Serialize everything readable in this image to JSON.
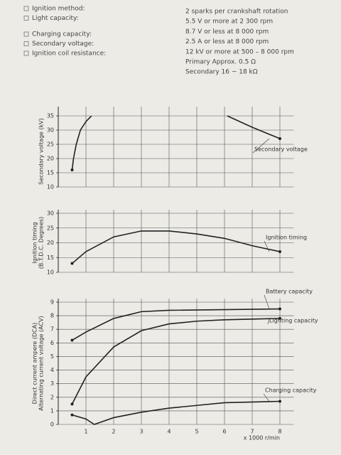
{
  "specs": [
    {
      "label": "Ignition method:",
      "values": [
        "2 sparks per crankshaft rotation"
      ]
    },
    {
      "label": "Light capacity:",
      "values": [
        "5.5 V or more at 2 300 rpm",
        "8.7 V or less at 8 000 rpm"
      ]
    },
    {
      "label": "Charging capacity:",
      "values": [
        "2.5 A or less at 8 000 rpm"
      ]
    },
    {
      "label": "Secondary voltage:",
      "values": [
        "12 kV or more at 500 – 8 000 rpm"
      ]
    },
    {
      "label": "Ignition coil resistance:",
      "values": [
        "Primary Approx. 0.5 Ω",
        "Secondary 16 ~ 18 kΩ"
      ]
    }
  ],
  "chart_data": [
    {
      "type": "line",
      "ylabel": [
        "Secondary voltage (kV)"
      ],
      "xlim": [
        0,
        8.5
      ],
      "xticks": [
        1,
        2,
        3,
        4,
        5,
        6,
        7,
        8
      ],
      "ylim": [
        10,
        35
      ],
      "yticks": [
        10,
        15,
        20,
        25,
        30,
        35
      ],
      "grid": true,
      "series": [
        {
          "name": "Secondary voltage",
          "color": "#222222",
          "x": [
            0.5,
            0.55,
            0.65,
            0.8,
            1.0,
            1.2,
            3.5,
            6.1,
            7,
            8
          ],
          "values": [
            16,
            20,
            25,
            30,
            33,
            35,
            null,
            35,
            31,
            27
          ]
        }
      ]
    },
    {
      "type": "line",
      "ylabel": [
        "Ignition timing",
        "(B.T.D.C. Degrees)"
      ],
      "xlim": [
        0,
        8.5
      ],
      "xticks": [
        1,
        2,
        3,
        4,
        5,
        6,
        7,
        8
      ],
      "ylim": [
        10,
        30
      ],
      "yticks": [
        10,
        15,
        20,
        25,
        30
      ],
      "grid": true,
      "series": [
        {
          "name": "Ignition timing",
          "color": "#222222",
          "x": [
            0.5,
            1,
            2,
            3,
            4,
            5,
            6,
            7,
            8
          ],
          "values": [
            13,
            17,
            22,
            24,
            24,
            23,
            21.5,
            19,
            17
          ]
        }
      ]
    },
    {
      "type": "line",
      "ylabel": [
        "Direct current ampere (DCA)",
        "Alternating current voltage (ACV)"
      ],
      "xlabel": "x 1000 r/min",
      "xlim": [
        0,
        8.5
      ],
      "xticks": [
        1,
        2,
        3,
        4,
        5,
        6,
        7,
        8
      ],
      "ylim": [
        0,
        9
      ],
      "yticks": [
        0,
        1,
        2,
        3,
        4,
        5,
        6,
        7,
        8,
        9
      ],
      "grid": true,
      "series": [
        {
          "name": "Battery capacity",
          "color": "#222222",
          "x": [
            0.5,
            1,
            2,
            3,
            4,
            8
          ],
          "values": [
            6.2,
            6.8,
            7.8,
            8.3,
            8.4,
            8.5
          ]
        },
        {
          "name": "Lighting capacity",
          "color": "#222222",
          "x": [
            0.5,
            1,
            2,
            3,
            4,
            5,
            6,
            8
          ],
          "values": [
            1.5,
            3.5,
            5.7,
            6.9,
            7.4,
            7.6,
            7.7,
            7.8
          ]
        },
        {
          "name": "Charging capacity",
          "color": "#222222",
          "x": [
            0.5,
            1,
            1.3,
            2,
            3,
            4,
            5,
            6,
            8
          ],
          "values": [
            0.7,
            0.4,
            0,
            0.5,
            0.9,
            1.2,
            1.4,
            1.6,
            1.7
          ]
        }
      ]
    }
  ]
}
